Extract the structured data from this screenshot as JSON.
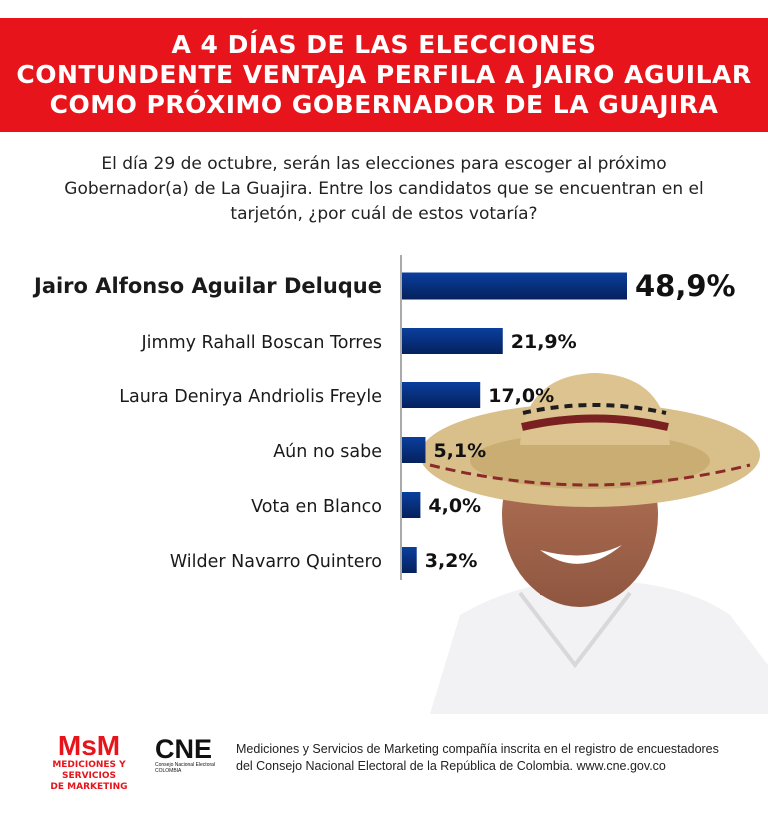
{
  "header": {
    "line1": "A 4 DÍAS DE LAS ELECCIONES",
    "line2": "CONTUNDENTE VENTAJA PERFILA A JAIRO AGUILAR",
    "line3": "COMO PRÓXIMO GOBERNADOR DE LA GUAJIRA",
    "bg_color": "#e8141b"
  },
  "question": {
    "line1": "El día 29 de octubre, serán las elecciones para escoger al próximo",
    "line2": "Gobernador(a) de La Guajira. Entre los candidatos que se encuentran en el",
    "line3": "tarjetón, ¿por cuál de estos votaría?"
  },
  "chart_data": {
    "type": "bar",
    "orientation": "horizontal",
    "categories": [
      "Jairo Alfonso Aguilar Deluque",
      "Jimmy Rahall Boscan Torres",
      "Laura Deniryа Andriolis Freyle",
      "Aún no sabe",
      "Vota en Blanco",
      "Wilder Navarro Quintero"
    ],
    "values": [
      48.9,
      21.9,
      17.0,
      5.1,
      4.0,
      3.2
    ],
    "value_labels": [
      "48,9%",
      "21,9%",
      "17,0%",
      "5,1%",
      "4,0%",
      "3,2%"
    ],
    "highlight_index": 0,
    "bar_color": "#0a3f9e",
    "bar_color_dark": "#05215c",
    "xlim": [
      0,
      50
    ],
    "grid": false,
    "legend": "none"
  },
  "footer": {
    "msm_logo": "MsM",
    "msm_subtitle_line1": "MEDICIONES Y SERVICIOS",
    "msm_subtitle_line2": "DE MARKETING",
    "cne_logo": "CNE",
    "cne_subtitle": "Consejo Nacional Electoral",
    "cne_country": "COLOMBIA",
    "text_line1": "Mediciones y Servicios de Marketing compañía inscrita en el registro de encuestadores",
    "text_line2": "del Consejo Nacional Electoral de la República de Colombia. www.cne.gov.co"
  }
}
